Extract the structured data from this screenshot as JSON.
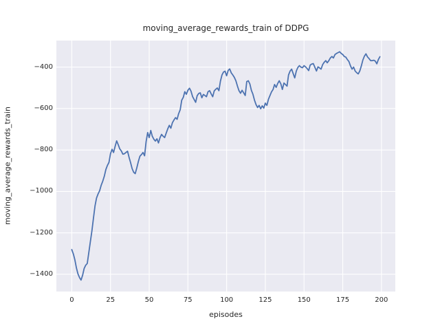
{
  "figure": {
    "background_color": "#ffffff",
    "axes_background_color": "#eaeaf2",
    "grid_color": "#ffffff",
    "text_color": "#262626",
    "line_color": "#4c72b0"
  },
  "chart_data": {
    "type": "line",
    "title": "moving_average_rewards_train of DDPG",
    "xlabel": "episodes",
    "ylabel": "moving_average_rewards_train",
    "grid": true,
    "legend": null,
    "xlim": [
      -9.95,
      208.95
    ],
    "ylim": [
      -1483,
      -272
    ],
    "xticks": {
      "values": [
        0,
        25,
        50,
        75,
        100,
        125,
        150,
        175,
        200
      ],
      "labels": [
        "0",
        "25",
        "50",
        "75",
        "100",
        "125",
        "150",
        "175",
        "200"
      ]
    },
    "yticks": {
      "values": [
        -400,
        -600,
        -800,
        -1000,
        -1200,
        -1400
      ],
      "labels": [
        "−400",
        "−600",
        "−800",
        "−1000",
        "−1200",
        "−1400"
      ]
    },
    "series": [
      {
        "x_start": 0,
        "x_step": 1,
        "values": [
          -1281,
          -1302,
          -1330,
          -1370,
          -1398,
          -1416,
          -1428,
          -1404,
          -1372,
          -1356,
          -1348,
          -1295,
          -1243,
          -1190,
          -1130,
          -1070,
          -1032,
          -1012,
          -997,
          -970,
          -950,
          -927,
          -894,
          -875,
          -860,
          -818,
          -797,
          -812,
          -782,
          -756,
          -775,
          -795,
          -805,
          -820,
          -818,
          -812,
          -806,
          -835,
          -862,
          -890,
          -908,
          -914,
          -886,
          -855,
          -830,
          -822,
          -812,
          -828,
          -760,
          -716,
          -740,
          -706,
          -734,
          -748,
          -757,
          -746,
          -766,
          -740,
          -725,
          -734,
          -740,
          -718,
          -698,
          -681,
          -695,
          -668,
          -655,
          -644,
          -652,
          -625,
          -606,
          -560,
          -546,
          -519,
          -531,
          -512,
          -502,
          -516,
          -542,
          -556,
          -570,
          -538,
          -527,
          -524,
          -548,
          -532,
          -537,
          -543,
          -519,
          -514,
          -529,
          -543,
          -515,
          -507,
          -501,
          -514,
          -468,
          -438,
          -424,
          -420,
          -442,
          -416,
          -409,
          -428,
          -438,
          -450,
          -466,
          -492,
          -514,
          -526,
          -512,
          -524,
          -537,
          -470,
          -466,
          -481,
          -513,
          -531,
          -560,
          -581,
          -595,
          -585,
          -601,
          -587,
          -598,
          -574,
          -585,
          -556,
          -537,
          -520,
          -508,
          -484,
          -498,
          -479,
          -466,
          -481,
          -508,
          -477,
          -484,
          -492,
          -438,
          -419,
          -410,
          -432,
          -452,
          -419,
          -402,
          -393,
          -400,
          -403,
          -393,
          -399,
          -407,
          -417,
          -390,
          -385,
          -383,
          -401,
          -419,
          -399,
          -404,
          -410,
          -388,
          -377,
          -369,
          -379,
          -369,
          -356,
          -349,
          -356,
          -339,
          -334,
          -330,
          -326,
          -334,
          -339,
          -349,
          -352,
          -364,
          -373,
          -394,
          -410,
          -400,
          -419,
          -427,
          -433,
          -419,
          -394,
          -366,
          -347,
          -336,
          -351,
          -359,
          -369,
          -369,
          -367,
          -371,
          -384,
          -364,
          -350
        ]
      }
    ]
  }
}
